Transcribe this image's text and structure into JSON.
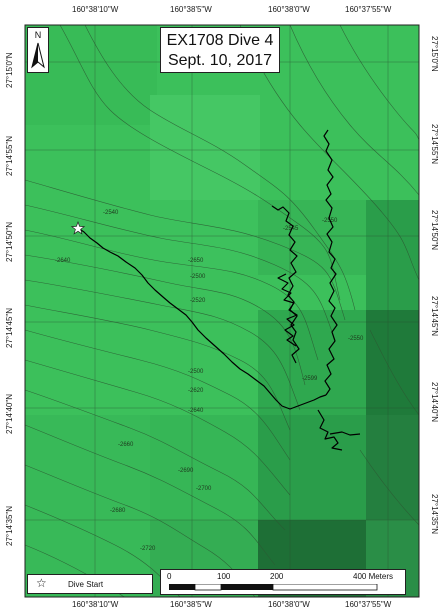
{
  "title": {
    "line1": "EX1708 Dive 4",
    "line2": "Sept. 10, 2017"
  },
  "north_arrow": {
    "letter": "N",
    "icon": "north-arrow-icon"
  },
  "legend": {
    "symbol": "☆",
    "label": "Dive Start"
  },
  "scale_bar": {
    "labels": [
      "0",
      "100",
      "200",
      "400 Meters"
    ]
  },
  "axes": {
    "top_longitudes": [
      "160°38'10\"W",
      "160°38'5\"W",
      "160°38'0\"W",
      "160°37'55\"W"
    ],
    "bottom_longitudes": [
      "160°38'10\"W",
      "160°38'5\"W",
      "160°38'0\"W",
      "160°37'55\"W"
    ],
    "left_latitudes": [
      "27°15'0\"N",
      "27°14'55\"N",
      "27°14'50\"N",
      "27°14'45\"N",
      "27°14'40\"N",
      "27°14'35\"N"
    ],
    "right_latitudes": [
      "27°15'0\"N",
      "27°14'55\"N",
      "27°14'50\"N",
      "27°14'45\"N",
      "27°14'40\"N",
      "27°14'35\"N"
    ]
  },
  "contour_labels": [
    "-2540",
    "-2640",
    "-2650",
    "-2500",
    "-2520",
    "-2545",
    "-2550",
    "-2500",
    "-2620",
    "-2599",
    "-2640",
    "-2690",
    "-2660",
    "-2680",
    "-2700",
    "-2720",
    "-2550"
  ],
  "colors": {
    "bathymetry_light": "#3bbf5a",
    "bathymetry_mid": "#2e9e4a",
    "bathymetry_dark": "#1f6e35",
    "track": "#000000",
    "contour": "#2f5f35"
  }
}
